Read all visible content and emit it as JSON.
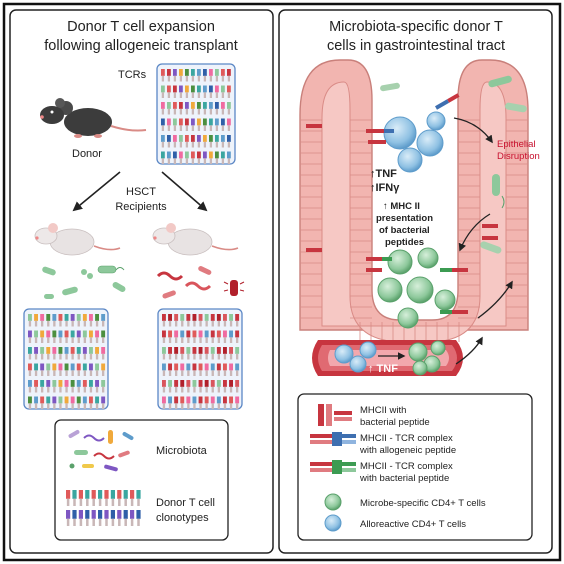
{
  "left_panel": {
    "title_line1": "Donor T cell expansion",
    "title_line2": "following allogeneic transplant",
    "tcrs_label": "TCRs",
    "donor_label": "Donor",
    "hsct_line1": "HSCT",
    "hsct_line2": "Recipients",
    "legend": {
      "microbiota_label": "Microbiota",
      "clonotypes_line1": "Donor T cell",
      "clonotypes_line2": "clonotypes"
    }
  },
  "right_panel": {
    "title_line1": "Microbiota-specific donor T",
    "title_line2": "cells in gastrointestinal tract",
    "tnf_label": "↑TNF",
    "ifng_label": "↑IFNγ",
    "mhc_line1": "↑ MHC II",
    "mhc_line2": "presentation",
    "mhc_line3": "of bacterial",
    "mhc_line4": "peptides",
    "epithelial_line1": "Epithelial",
    "epithelial_line2": "Disruption",
    "vessel_tnf_label": "↑ TNF",
    "legend": {
      "item1_line1": "MHCII with",
      "item1_line2": "bacterial peptide",
      "item2_line1": "MHCII - TCR complex",
      "item2_line2": "with allogeneic peptide",
      "item3_line1": "MHCII - TCR complex",
      "item3_line2": "with bacterial peptide",
      "item4": "Microbe-specific CD4+ T cells",
      "item5": "Alloreactive CD4+ T cells"
    }
  },
  "colors": {
    "tissue_pink": "#f2b5b0",
    "tissue_dark": "#d98b86",
    "vessel_red": "#c7353f",
    "alloreactive_blue": "#8fc1e3",
    "microbe_green": "#8dc89b",
    "accent_red": "#c8102e",
    "panel_border": "#222222",
    "array_border": "#5b87c5"
  }
}
